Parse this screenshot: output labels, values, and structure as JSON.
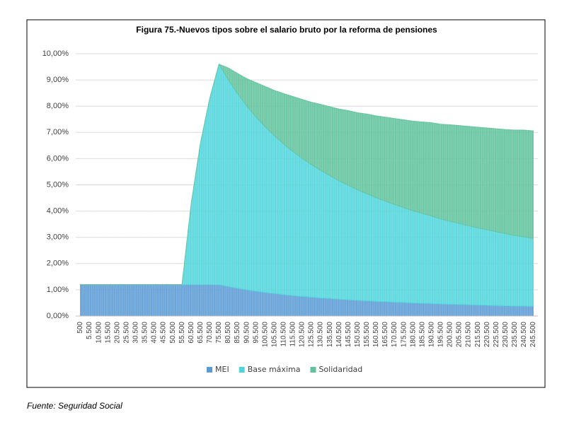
{
  "chart_data": {
    "type": "stacked_area",
    "title": "Figura 75.-Nuevos tipos sobre el salario bruto por la reforma de pensiones",
    "source": "Fuente: Seguridad Social",
    "categories": [
      "500",
      "5.500",
      "10.500",
      "15.500",
      "20.500",
      "25.500",
      "30.500",
      "35.500",
      "40.500",
      "45.500",
      "50.500",
      "55.500",
      "60.500",
      "65.500",
      "70.500",
      "75.500",
      "80.500",
      "85.500",
      "90.500",
      "95.500",
      "100.500",
      "105.500",
      "110.500",
      "115.500",
      "120.500",
      "125.500",
      "130.500",
      "135.500",
      "140.500",
      "145.500",
      "150.500",
      "155.500",
      "160.500",
      "165.500",
      "170.500",
      "175.500",
      "180.500",
      "185.500",
      "190.500",
      "195.500",
      "200.500",
      "205.500",
      "210.500",
      "215.500",
      "220.500",
      "225.500",
      "230.500",
      "235.500",
      "240.500",
      "245.500"
    ],
    "series": [
      {
        "name": "MEI",
        "color": "#5b9bd5",
        "values": [
          1.2,
          1.2,
          1.2,
          1.2,
          1.2,
          1.2,
          1.2,
          1.2,
          1.2,
          1.2,
          1.2,
          1.2,
          1.2,
          1.2,
          1.2,
          1.2,
          1.13,
          1.06,
          1.0,
          0.95,
          0.9,
          0.86,
          0.82,
          0.78,
          0.75,
          0.72,
          0.69,
          0.67,
          0.64,
          0.62,
          0.6,
          0.58,
          0.56,
          0.55,
          0.53,
          0.52,
          0.5,
          0.49,
          0.48,
          0.46,
          0.45,
          0.44,
          0.43,
          0.42,
          0.41,
          0.4,
          0.39,
          0.38,
          0.38,
          0.37
        ]
      },
      {
        "name": "Base máxima",
        "color": "#4fd5db",
        "values": [
          0,
          0,
          0,
          0,
          0,
          0,
          0,
          0,
          0,
          0,
          0,
          0,
          3.1,
          5.4,
          7.1,
          8.4,
          7.88,
          7.42,
          7.01,
          6.64,
          6.31,
          6.01,
          5.74,
          5.49,
          5.26,
          5.05,
          4.86,
          4.68,
          4.51,
          4.36,
          4.21,
          4.08,
          3.95,
          3.83,
          3.72,
          3.61,
          3.51,
          3.42,
          3.33,
          3.24,
          3.16,
          3.09,
          3.01,
          2.94,
          2.88,
          2.81,
          2.75,
          2.69,
          2.64,
          2.58
        ]
      },
      {
        "name": "Solidaridad",
        "color": "#5fc29c",
        "values": [
          0,
          0,
          0,
          0,
          0,
          0,
          0,
          0,
          0,
          0,
          0,
          0,
          0,
          0,
          0,
          0,
          0.45,
          0.77,
          1.04,
          1.31,
          1.54,
          1.73,
          1.92,
          2.1,
          2.25,
          2.38,
          2.52,
          2.63,
          2.74,
          2.85,
          2.94,
          3.04,
          3.12,
          3.2,
          3.28,
          3.35,
          3.42,
          3.49,
          3.56,
          3.61,
          3.68,
          3.73,
          3.79,
          3.84,
          3.88,
          3.93,
          3.97,
          4.02,
          4.07,
          4.11
        ]
      }
    ],
    "ylim": [
      0,
      10
    ],
    "yticks": [
      {
        "value": 0,
        "label": "0,00%"
      },
      {
        "value": 1,
        "label": "1,00%"
      },
      {
        "value": 2,
        "label": "2,00%"
      },
      {
        "value": 3,
        "label": "3,00%"
      },
      {
        "value": 4,
        "label": "4,00%"
      },
      {
        "value": 5,
        "label": "5,00%"
      },
      {
        "value": 6,
        "label": "6,00%"
      },
      {
        "value": 7,
        "label": "7,00%"
      },
      {
        "value": 8,
        "label": "8,00%"
      },
      {
        "value": 9,
        "label": "9,00%"
      },
      {
        "value": 10,
        "label": "10,00%"
      }
    ],
    "grid": true,
    "legend": "bottom"
  }
}
